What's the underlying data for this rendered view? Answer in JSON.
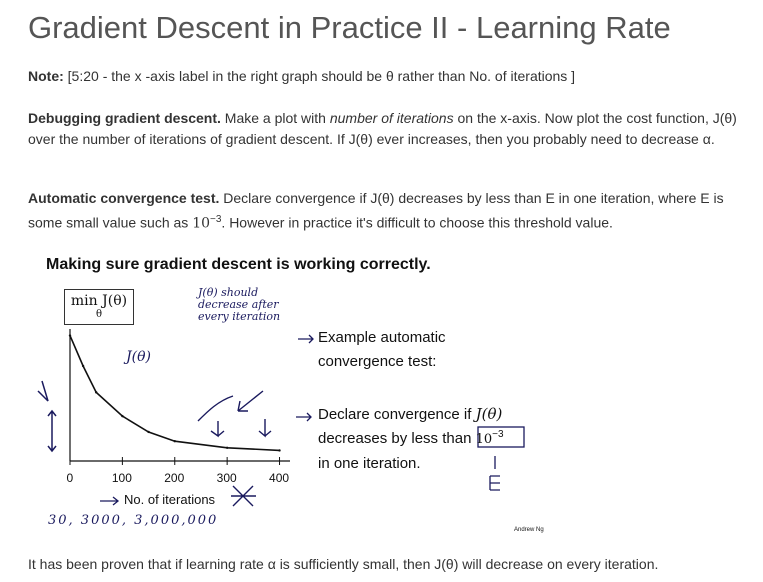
{
  "page": {
    "title": "Gradient Descent in Practice II - Learning Rate",
    "note_label": "Note:",
    "note_text": "[5:20 - the x -axis label in the right graph should be θ rather than No. of iterations ]",
    "debug_label": "Debugging gradient descent.",
    "debug_text_1": "Make a plot with",
    "debug_italic": "number of iterations",
    "debug_text_2": "on the x-axis. Now plot the cost function, J(θ) over the number of iterations of gradient descent. If J(θ) ever increases, then you probably need to decrease α.",
    "auto_label": "Automatic convergence test.",
    "auto_text_1": "Declare convergence if J(θ) decreases by less than E in one iteration, where E is some small value such as",
    "auto_power_base": "10",
    "auto_power_exp": "−3",
    "auto_text_2": ". However in practice it's difficult to choose this threshold value.",
    "footer": "It has been proven that if learning rate α is sufficiently small, then J(θ) will decrease on every iteration."
  },
  "slide": {
    "title": "Making sure gradient descent is working correctly.",
    "ylabel": "min J(θ)",
    "ylabel_sub": "θ",
    "xlabel": "No. of iterations",
    "annotation_1": "J(θ) should decrease after every iteration",
    "annotation_jtheta": "J(θ)",
    "example_text_1": "Example automatic",
    "example_text_2": "convergence test:",
    "declare_text_1": "Declare convergence if",
    "declare_math_1": "J(θ)",
    "declare_text_2": "decreases by less than",
    "declare_math_2": "10",
    "declare_math_2_exp": "−3",
    "declare_text_3": "in one iteration.",
    "handwritten_scale": "30, 3000, 3,000,000",
    "credit": "Andrew Ng",
    "x_ticks": [
      "0",
      "100",
      "200",
      "300",
      "400"
    ]
  },
  "chart_data": {
    "type": "line",
    "title": "",
    "xlabel": "No. of iterations",
    "ylabel": "min J(θ)",
    "x": [
      0,
      25,
      50,
      100,
      150,
      200,
      300,
      400
    ],
    "series": [
      {
        "name": "",
        "values": [
          95,
          72,
          52,
          34,
          22,
          15,
          10,
          8
        ]
      }
    ],
    "xlim": [
      0,
      420
    ],
    "ylim": [
      0,
      100
    ],
    "grid": false
  }
}
